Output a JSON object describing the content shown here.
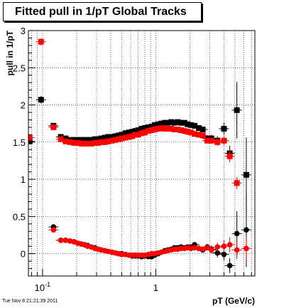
{
  "title": "Fitted pull in 1/pT  Global Tracks",
  "timestamp": "Tue Nov  8 21:21:39 2011",
  "chart_data": {
    "type": "scatter",
    "xlabel": "pT (GeV/c)",
    "ylabel": "pull in 1/pT",
    "xscale": "log",
    "xlim": [
      0.075,
      7.5
    ],
    "ylim": [
      -0.3,
      3.0
    ],
    "grid": true,
    "x_tick_labels": [
      {
        "x": 0.1,
        "main": "10",
        "sup": "-1"
      },
      {
        "x": 1,
        "main": "1",
        "sup": ""
      }
    ],
    "y_tick_labels": [
      "0",
      "0.5",
      "1",
      "1.5",
      "2",
      "2.5",
      "3"
    ],
    "y_ticks": [
      0,
      0.5,
      1,
      1.5,
      2,
      2.5,
      3
    ],
    "series": [
      {
        "marker": "square",
        "color": "#000000",
        "x": [
          0.077,
          0.097,
          0.125,
          0.145,
          0.16,
          0.175,
          0.19,
          0.205,
          0.22,
          0.235,
          0.25,
          0.27,
          0.29,
          0.31,
          0.33,
          0.355,
          0.38,
          0.41,
          0.44,
          0.47,
          0.5,
          0.54,
          0.58,
          0.62,
          0.66,
          0.7,
          0.75,
          0.8,
          0.86,
          0.92,
          0.98,
          1.05,
          1.12,
          1.2,
          1.28,
          1.37,
          1.46,
          1.56,
          1.67,
          1.79,
          1.91,
          2.04,
          2.2,
          2.4,
          2.6,
          2.85,
          3.1,
          3.5,
          4.0,
          4.5,
          5.2,
          6.3
        ],
        "y": [
          1.51,
          2.07,
          1.72,
          1.57,
          1.55,
          1.53,
          1.53,
          1.53,
          1.53,
          1.53,
          1.53,
          1.53,
          1.54,
          1.54,
          1.55,
          1.56,
          1.57,
          1.57,
          1.58,
          1.59,
          1.6,
          1.62,
          1.63,
          1.64,
          1.65,
          1.66,
          1.68,
          1.69,
          1.7,
          1.71,
          1.73,
          1.74,
          1.75,
          1.76,
          1.76,
          1.77,
          1.76,
          1.77,
          1.76,
          1.76,
          1.74,
          1.73,
          1.72,
          1.69,
          1.67,
          1.55,
          1.55,
          1.52,
          1.68,
          1.35,
          1.93,
          1.06
        ],
        "yerr": [
          0.02,
          0.05,
          0.03,
          0.02,
          0.01,
          0.01,
          0.01,
          0.01,
          0.01,
          0.01,
          0.01,
          0.01,
          0.01,
          0.01,
          0.01,
          0.01,
          0.01,
          0.01,
          0.01,
          0.01,
          0.01,
          0.01,
          0.01,
          0.01,
          0.01,
          0.01,
          0.01,
          0.01,
          0.01,
          0.01,
          0.01,
          0.01,
          0.01,
          0.01,
          0.01,
          0.01,
          0.01,
          0.01,
          0.01,
          0.01,
          0.02,
          0.02,
          0.02,
          0.03,
          0.03,
          0.04,
          0.05,
          0.06,
          0.08,
          0.1,
          0.38,
          0.5
        ]
      },
      {
        "marker": "square",
        "color": "#ff0000",
        "x": [
          0.077,
          0.097,
          0.125,
          0.145,
          0.16,
          0.175,
          0.19,
          0.205,
          0.22,
          0.235,
          0.25,
          0.27,
          0.29,
          0.31,
          0.33,
          0.355,
          0.38,
          0.41,
          0.44,
          0.47,
          0.5,
          0.54,
          0.58,
          0.62,
          0.66,
          0.7,
          0.75,
          0.8,
          0.86,
          0.92,
          0.98,
          1.05,
          1.12,
          1.2,
          1.28,
          1.37,
          1.46,
          1.56,
          1.67,
          1.79,
          1.91,
          2.04,
          2.2,
          2.4,
          2.6,
          2.85,
          3.1,
          3.5,
          4.0,
          4.5,
          5.2
        ],
        "y": [
          1.56,
          2.85,
          1.7,
          1.54,
          1.51,
          1.5,
          1.49,
          1.49,
          1.48,
          1.48,
          1.48,
          1.48,
          1.49,
          1.49,
          1.5,
          1.5,
          1.51,
          1.52,
          1.53,
          1.54,
          1.55,
          1.56,
          1.57,
          1.58,
          1.6,
          1.6,
          1.62,
          1.63,
          1.65,
          1.66,
          1.67,
          1.68,
          1.69,
          1.68,
          1.68,
          1.68,
          1.67,
          1.67,
          1.66,
          1.65,
          1.64,
          1.63,
          1.61,
          1.6,
          1.59,
          1.52,
          1.52,
          1.5,
          1.52,
          1.31,
          0.95
        ],
        "yerr": [
          0.02,
          0.05,
          0.03,
          0.02,
          0.01,
          0.01,
          0.01,
          0.01,
          0.01,
          0.01,
          0.01,
          0.01,
          0.01,
          0.01,
          0.01,
          0.01,
          0.01,
          0.01,
          0.01,
          0.01,
          0.01,
          0.01,
          0.01,
          0.01,
          0.01,
          0.01,
          0.01,
          0.01,
          0.01,
          0.01,
          0.01,
          0.01,
          0.01,
          0.01,
          0.01,
          0.01,
          0.01,
          0.01,
          0.01,
          0.01,
          0.01,
          0.02,
          0.02,
          0.02,
          0.03,
          0.03,
          0.04,
          0.05,
          0.06,
          0.08,
          0.08
        ]
      },
      {
        "marker": "circle",
        "color": "#000000",
        "x": [
          0.125,
          0.145,
          0.16,
          0.175,
          0.19,
          0.205,
          0.22,
          0.235,
          0.25,
          0.27,
          0.29,
          0.31,
          0.33,
          0.355,
          0.38,
          0.41,
          0.44,
          0.47,
          0.5,
          0.54,
          0.58,
          0.62,
          0.66,
          0.7,
          0.75,
          0.8,
          0.86,
          0.92,
          0.98,
          1.05,
          1.12,
          1.2,
          1.28,
          1.37,
          1.46,
          1.56,
          1.67,
          1.79,
          1.91,
          2.04,
          2.2,
          2.4,
          2.6,
          2.85,
          3.1,
          3.5,
          4.0,
          4.5,
          5.2,
          6.3
        ],
        "y": [
          0.36,
          0.18,
          0.18,
          0.17,
          0.16,
          0.14,
          0.13,
          0.12,
          0.11,
          0.09,
          0.08,
          0.06,
          0.05,
          0.04,
          0.03,
          0.02,
          0.01,
          0.0,
          0.0,
          -0.01,
          -0.02,
          -0.03,
          -0.03,
          -0.03,
          -0.04,
          -0.03,
          -0.04,
          -0.04,
          -0.02,
          0.0,
          0.02,
          0.04,
          0.05,
          0.06,
          0.08,
          0.08,
          0.09,
          0.08,
          0.09,
          0.08,
          0.12,
          0.07,
          0.05,
          0.09,
          0.06,
          0.01,
          -0.01,
          -0.16,
          0.27,
          0.32
        ],
        "yerr": [
          0.02,
          0.01,
          0.01,
          0.01,
          0.01,
          0.01,
          0.01,
          0.01,
          0.01,
          0.01,
          0.01,
          0.01,
          0.01,
          0.01,
          0.01,
          0.01,
          0.01,
          0.01,
          0.01,
          0.01,
          0.01,
          0.01,
          0.01,
          0.01,
          0.01,
          0.01,
          0.01,
          0.01,
          0.01,
          0.01,
          0.01,
          0.01,
          0.01,
          0.01,
          0.01,
          0.01,
          0.01,
          0.02,
          0.02,
          0.02,
          0.02,
          0.03,
          0.03,
          0.04,
          0.05,
          0.06,
          0.08,
          0.1,
          0.3,
          0.5
        ]
      },
      {
        "marker": "circle",
        "color": "#ff0000",
        "x": [
          0.125,
          0.145,
          0.16,
          0.175,
          0.19,
          0.205,
          0.22,
          0.235,
          0.25,
          0.27,
          0.29,
          0.31,
          0.33,
          0.355,
          0.38,
          0.41,
          0.44,
          0.47,
          0.5,
          0.54,
          0.58,
          0.62,
          0.66,
          0.7,
          0.75,
          0.8,
          0.86,
          0.92,
          0.98,
          1.05,
          1.12,
          1.2,
          1.28,
          1.37,
          1.46,
          1.56,
          1.67,
          1.79,
          1.91,
          2.04,
          2.2,
          2.4,
          2.6,
          2.85,
          3.1,
          3.5,
          4.0,
          4.5,
          5.2,
          6.3
        ],
        "y": [
          0.32,
          0.18,
          0.18,
          0.17,
          0.16,
          0.14,
          0.13,
          0.12,
          0.1,
          0.09,
          0.07,
          0.06,
          0.05,
          0.04,
          0.03,
          0.02,
          0.01,
          0.0,
          -0.01,
          -0.01,
          -0.02,
          -0.02,
          -0.02,
          -0.02,
          -0.02,
          -0.02,
          -0.01,
          0.0,
          0.0,
          0.01,
          0.02,
          0.03,
          0.04,
          0.05,
          0.06,
          0.06,
          0.07,
          0.07,
          0.08,
          0.07,
          0.08,
          0.07,
          0.06,
          0.08,
          0.05,
          0.09,
          0.1,
          0.12,
          0.05,
          0.07
        ],
        "yerr": [
          0.02,
          0.01,
          0.01,
          0.01,
          0.01,
          0.01,
          0.01,
          0.01,
          0.01,
          0.01,
          0.01,
          0.01,
          0.01,
          0.01,
          0.01,
          0.01,
          0.01,
          0.01,
          0.01,
          0.01,
          0.01,
          0.01,
          0.01,
          0.01,
          0.01,
          0.01,
          0.01,
          0.01,
          0.01,
          0.01,
          0.01,
          0.01,
          0.01,
          0.01,
          0.01,
          0.01,
          0.01,
          0.02,
          0.02,
          0.02,
          0.02,
          0.03,
          0.03,
          0.04,
          0.05,
          0.06,
          0.08,
          0.1,
          0.12,
          0.15
        ]
      }
    ]
  }
}
